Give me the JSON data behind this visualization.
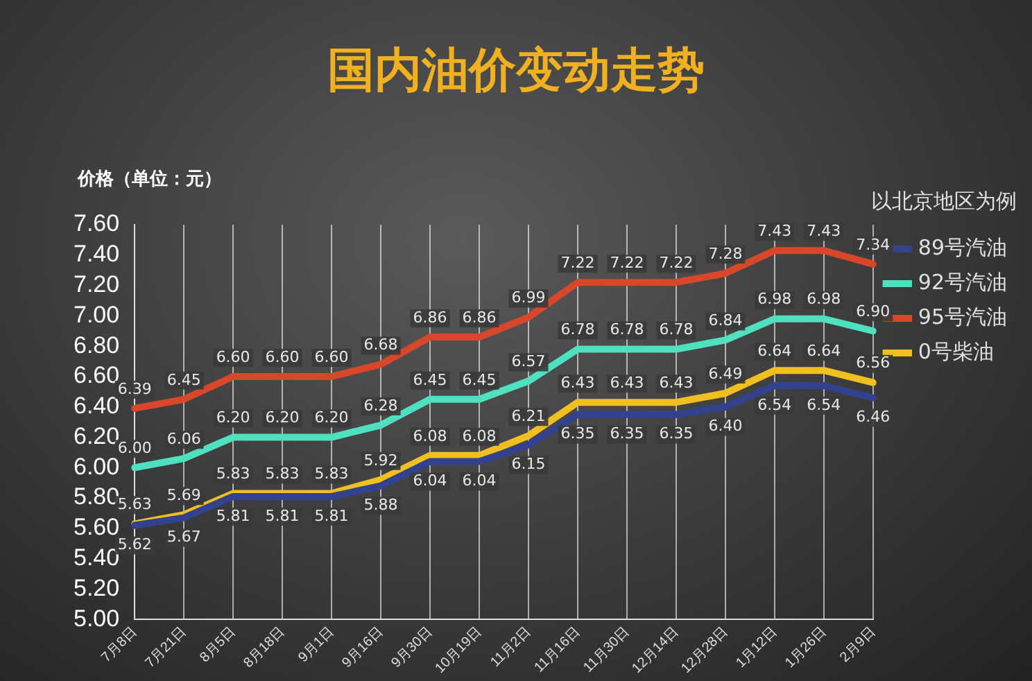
{
  "chart_data": {
    "type": "line",
    "title": "国内油价变动走势",
    "ylabel": "价格（单位：元）",
    "legend_title": "以北京地区为例",
    "legend": "right",
    "grid": "x",
    "data_labels": true,
    "marker": "none",
    "line_style": "solid",
    "categories": [
      "7月8日",
      "7月21日",
      "8月5日",
      "8月18日",
      "9月1日",
      "9月16日",
      "9月30日",
      "10月19日",
      "11月2日",
      "11月16日",
      "11月30日",
      "12月14日",
      "12月28日",
      "1月12日",
      "1月26日",
      "2月9日"
    ],
    "ylim": [
      5.0,
      7.6
    ],
    "yticks": [
      {
        "value": 5.0,
        "label": "5.00"
      },
      {
        "value": 5.2,
        "label": "5.20"
      },
      {
        "value": 5.4,
        "label": "5.40"
      },
      {
        "value": 5.6,
        "label": "5.60"
      },
      {
        "value": 5.8,
        "label": "5.80"
      },
      {
        "value": 6.0,
        "label": "6.00"
      },
      {
        "value": 6.2,
        "label": "6.20"
      },
      {
        "value": 6.4,
        "label": "6.40"
      },
      {
        "value": 6.6,
        "label": "6.60"
      },
      {
        "value": 6.8,
        "label": "6.80"
      },
      {
        "value": 7.0,
        "label": "7.00"
      },
      {
        "value": 7.2,
        "label": "7.20"
      },
      {
        "value": 7.4,
        "label": "7.40"
      },
      {
        "value": 7.6,
        "label": "7.60"
      }
    ],
    "series": [
      {
        "name": "89号汽油",
        "color": "#33428f",
        "values": [
          5.62,
          5.67,
          5.81,
          5.81,
          5.81,
          5.88,
          6.04,
          6.04,
          6.15,
          6.35,
          6.35,
          6.35,
          6.4,
          6.54,
          6.54,
          6.46
        ],
        "value_labels": [
          "5.62",
          "5.67",
          "5.81",
          "5.81",
          "5.81",
          "5.88",
          "6.04",
          "6.04",
          "6.15",
          "6.35",
          "6.35",
          "6.35",
          "6.40",
          "6.54",
          "6.54",
          "6.46"
        ]
      },
      {
        "name": "92号汽油",
        "color": "#4fe0c0",
        "values": [
          6.0,
          6.06,
          6.2,
          6.2,
          6.2,
          6.28,
          6.45,
          6.45,
          6.57,
          6.78,
          6.78,
          6.78,
          6.84,
          6.98,
          6.98,
          6.9
        ],
        "value_labels": [
          "6.00",
          "6.06",
          "6.20",
          "6.20",
          "6.20",
          "6.28",
          "6.45",
          "6.45",
          "6.57",
          "6.78",
          "6.78",
          "6.78",
          "6.84",
          "6.98",
          "6.98",
          "6.90"
        ]
      },
      {
        "name": "95号汽油",
        "color": "#d9472b",
        "values": [
          6.39,
          6.45,
          6.6,
          6.6,
          6.6,
          6.68,
          6.86,
          6.86,
          6.99,
          7.22,
          7.22,
          7.22,
          7.28,
          7.43,
          7.43,
          7.34
        ],
        "value_labels": [
          "6.39",
          "6.45",
          "6.60",
          "6.60",
          "6.60",
          "6.68",
          "6.86",
          "6.86",
          "6.99",
          "7.22",
          "7.22",
          "7.22",
          "7.28",
          "7.43",
          "7.43",
          "7.34"
        ]
      },
      {
        "name": "0号柴油",
        "color": "#f0c020",
        "values": [
          5.63,
          5.69,
          5.83,
          5.83,
          5.83,
          5.92,
          6.08,
          6.08,
          6.21,
          6.43,
          6.43,
          6.43,
          6.49,
          6.64,
          6.64,
          6.56
        ],
        "value_labels": [
          "5.63",
          "5.69",
          "5.83",
          "5.83",
          "5.83",
          "5.92",
          "6.08",
          "6.08",
          "6.21",
          "6.43",
          "6.43",
          "6.43",
          "6.49",
          "6.64",
          "6.64",
          "6.56"
        ]
      }
    ]
  }
}
